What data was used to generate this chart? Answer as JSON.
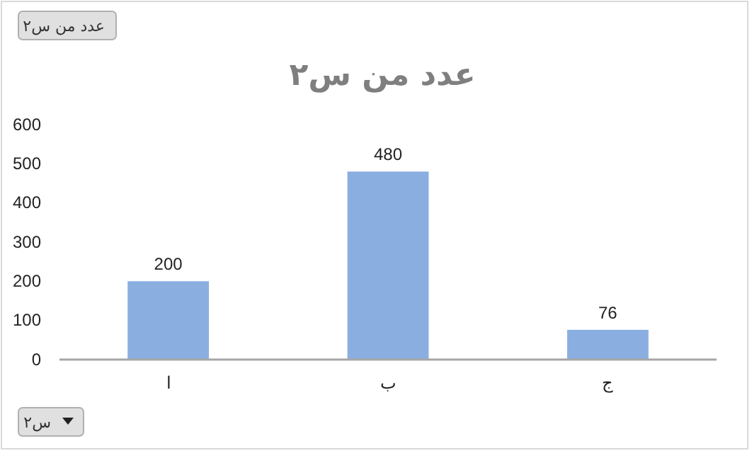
{
  "chart_data": {
    "type": "bar",
    "title": "عدد من س٢",
    "categories": [
      "ا",
      "ب",
      "ج"
    ],
    "values": [
      200,
      480,
      76
    ],
    "color": "#8aaee0",
    "ylim": [
      0,
      600
    ],
    "yticks": [
      0,
      100,
      200,
      300,
      400,
      500,
      600
    ],
    "grid": false,
    "data_labels": true,
    "annotations": [
      "عدد من س٢",
      "س٢"
    ]
  }
}
